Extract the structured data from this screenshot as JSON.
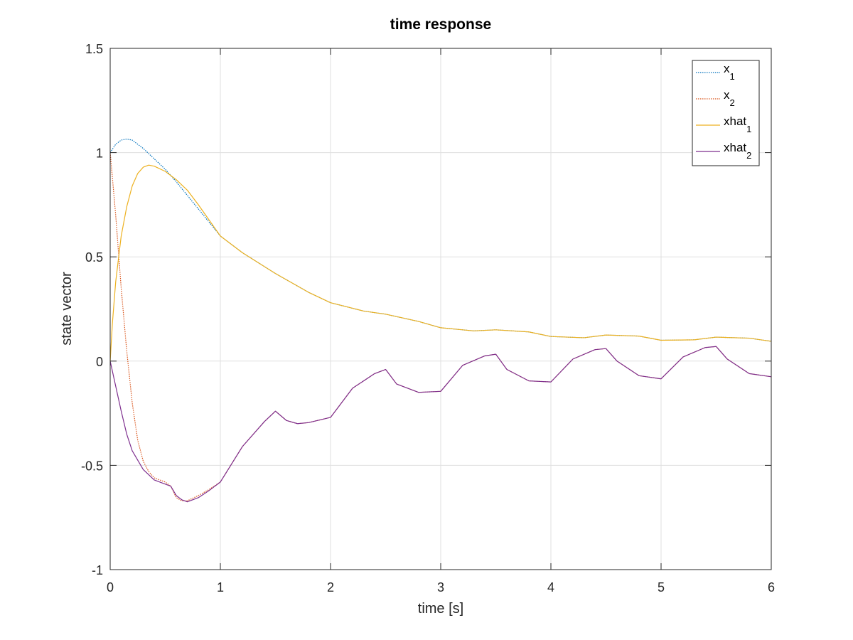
{
  "chart_data": {
    "type": "line",
    "title": "time response",
    "xlabel": "time [s]",
    "ylabel": "state vector",
    "xlim": [
      0,
      6
    ],
    "ylim": [
      -1,
      1.5
    ],
    "xticks": [
      0,
      1,
      2,
      3,
      4,
      5,
      6
    ],
    "xtick_labels": [
      "0",
      "1",
      "2",
      "3",
      "4",
      "5",
      "6"
    ],
    "yticks": [
      -1,
      -0.5,
      0,
      0.5,
      1,
      1.5
    ],
    "ytick_labels": [
      "-1",
      "-0.5",
      "0",
      "0.5",
      "1",
      "1.5"
    ],
    "grid": true,
    "legend_position": "top-right",
    "series": [
      {
        "name": "x_1",
        "label_main": "x",
        "label_sub": "1",
        "color": "#0072bd",
        "dash": "dotted",
        "x": [
          0,
          0.05,
          0.1,
          0.15,
          0.2,
          0.3,
          0.4,
          0.5,
          0.6,
          0.8,
          1.0,
          1.2,
          1.5,
          1.8,
          2.0,
          2.3,
          2.5,
          2.8,
          3.0,
          3.3,
          3.5,
          3.8,
          4.0,
          4.3,
          4.5,
          4.8,
          5.0,
          5.3,
          5.5,
          5.8,
          6.0
        ],
        "y": [
          1.0,
          1.04,
          1.06,
          1.065,
          1.06,
          1.02,
          0.97,
          0.92,
          0.86,
          0.73,
          0.6,
          0.52,
          0.42,
          0.33,
          0.28,
          0.24,
          0.225,
          0.19,
          0.16,
          0.145,
          0.15,
          0.14,
          0.118,
          0.112,
          0.125,
          0.12,
          0.1,
          0.102,
          0.115,
          0.11,
          0.095
        ]
      },
      {
        "name": "x_2",
        "label_main": "x",
        "label_sub": "2",
        "color": "#d95319",
        "dash": "dotted",
        "x": [
          0,
          0.05,
          0.1,
          0.15,
          0.2,
          0.25,
          0.3,
          0.35,
          0.4,
          0.45,
          0.5,
          0.55,
          0.6,
          0.65,
          0.7,
          0.8,
          0.9,
          1.0,
          1.2,
          1.4,
          1.5,
          1.6,
          1.7,
          1.8,
          2.0,
          2.2,
          2.4,
          2.5,
          2.6,
          2.8,
          3.0,
          3.2,
          3.4,
          3.5,
          3.6,
          3.8,
          4.0,
          4.2,
          4.4,
          4.5,
          4.6,
          4.8,
          5.0,
          5.2,
          5.4,
          5.5,
          5.6,
          5.8,
          6.0
        ],
        "y": [
          1.0,
          0.7,
          0.35,
          0.05,
          -0.2,
          -0.38,
          -0.48,
          -0.53,
          -0.56,
          -0.57,
          -0.58,
          -0.6,
          -0.655,
          -0.67,
          -0.67,
          -0.645,
          -0.615,
          -0.58,
          -0.41,
          -0.29,
          -0.24,
          -0.285,
          -0.3,
          -0.295,
          -0.27,
          -0.13,
          -0.06,
          -0.04,
          -0.11,
          -0.15,
          -0.145,
          -0.02,
          0.025,
          0.033,
          -0.04,
          -0.095,
          -0.1,
          0.01,
          0.055,
          0.06,
          0.0,
          -0.07,
          -0.085,
          0.02,
          0.065,
          0.07,
          0.01,
          -0.06,
          -0.075
        ]
      },
      {
        "name": "xhat_1",
        "label_main": "xhat",
        "label_sub": "1",
        "color": "#edb120",
        "dash": "solid",
        "x": [
          0,
          0.02,
          0.05,
          0.1,
          0.15,
          0.2,
          0.25,
          0.3,
          0.35,
          0.4,
          0.5,
          0.6,
          0.7,
          0.8,
          1.0,
          1.2,
          1.5,
          1.8,
          2.0,
          2.3,
          2.5,
          2.8,
          3.0,
          3.3,
          3.5,
          3.8,
          4.0,
          4.3,
          4.5,
          4.8,
          5.0,
          5.3,
          5.5,
          5.8,
          6.0
        ],
        "y": [
          0.0,
          0.18,
          0.38,
          0.6,
          0.74,
          0.84,
          0.9,
          0.93,
          0.94,
          0.935,
          0.91,
          0.87,
          0.82,
          0.75,
          0.6,
          0.52,
          0.42,
          0.33,
          0.28,
          0.24,
          0.225,
          0.19,
          0.16,
          0.145,
          0.15,
          0.14,
          0.118,
          0.112,
          0.125,
          0.12,
          0.1,
          0.102,
          0.115,
          0.11,
          0.095
        ]
      },
      {
        "name": "xhat_2",
        "label_main": "xhat",
        "label_sub": "2",
        "color": "#7e2f8e",
        "dash": "solid",
        "x": [
          0,
          0.05,
          0.1,
          0.15,
          0.2,
          0.3,
          0.4,
          0.5,
          0.55,
          0.6,
          0.65,
          0.7,
          0.8,
          0.9,
          1.0,
          1.2,
          1.4,
          1.5,
          1.6,
          1.7,
          1.8,
          2.0,
          2.2,
          2.4,
          2.5,
          2.6,
          2.8,
          3.0,
          3.2,
          3.4,
          3.5,
          3.6,
          3.8,
          4.0,
          4.2,
          4.4,
          4.5,
          4.6,
          4.8,
          5.0,
          5.2,
          5.4,
          5.5,
          5.6,
          5.8,
          6.0
        ],
        "y": [
          0.0,
          -0.12,
          -0.24,
          -0.35,
          -0.43,
          -0.52,
          -0.57,
          -0.59,
          -0.6,
          -0.645,
          -0.665,
          -0.675,
          -0.655,
          -0.62,
          -0.58,
          -0.41,
          -0.29,
          -0.24,
          -0.285,
          -0.3,
          -0.295,
          -0.27,
          -0.13,
          -0.06,
          -0.04,
          -0.11,
          -0.15,
          -0.145,
          -0.02,
          0.025,
          0.033,
          -0.04,
          -0.095,
          -0.1,
          0.01,
          0.055,
          0.06,
          0.0,
          -0.07,
          -0.085,
          0.02,
          0.065,
          0.07,
          0.01,
          -0.06,
          -0.075
        ]
      }
    ]
  }
}
